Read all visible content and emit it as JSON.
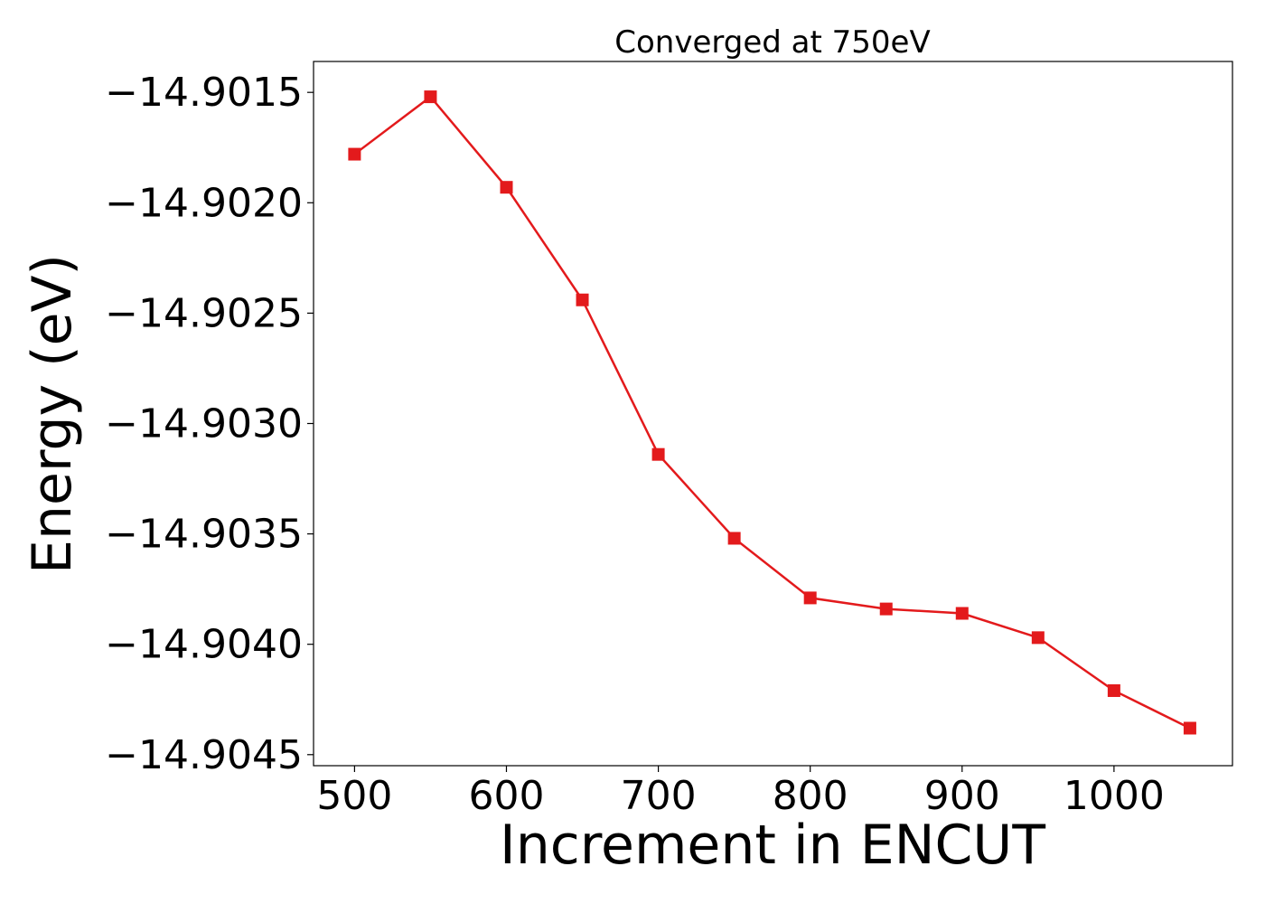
{
  "chart_data": {
    "type": "line",
    "title": "Converged at 750eV",
    "xlabel": "Increment in ENCUT",
    "ylabel": "Energy (eV)",
    "x": [
      500,
      550,
      600,
      650,
      700,
      750,
      800,
      850,
      900,
      950,
      1000,
      1050
    ],
    "series": [
      {
        "values": [
          -14.90178,
          -14.90152,
          -14.90193,
          -14.90244,
          -14.90314,
          -14.90352,
          -14.90379,
          -14.90384,
          -14.90386,
          -14.90397,
          -14.90421,
          -14.90438
        ],
        "color": "#e31a1c",
        "marker": "square"
      }
    ],
    "xlim": [
      473,
      1078
    ],
    "ylim": [
      -14.90455,
      -14.90136
    ],
    "xticks": [
      500,
      600,
      700,
      800,
      900,
      1000
    ],
    "xtick_labels": [
      "500",
      "600",
      "700",
      "800",
      "900",
      "1000"
    ],
    "yticks": [
      -14.9015,
      -14.902,
      -14.9025,
      -14.903,
      -14.9035,
      -14.904,
      -14.9045
    ],
    "ytick_labels": [
      "−14.9015",
      "−14.9020",
      "−14.9025",
      "−14.9030",
      "−14.9035",
      "−14.9040",
      "−14.9045"
    ],
    "grid": false,
    "legend": "none"
  }
}
